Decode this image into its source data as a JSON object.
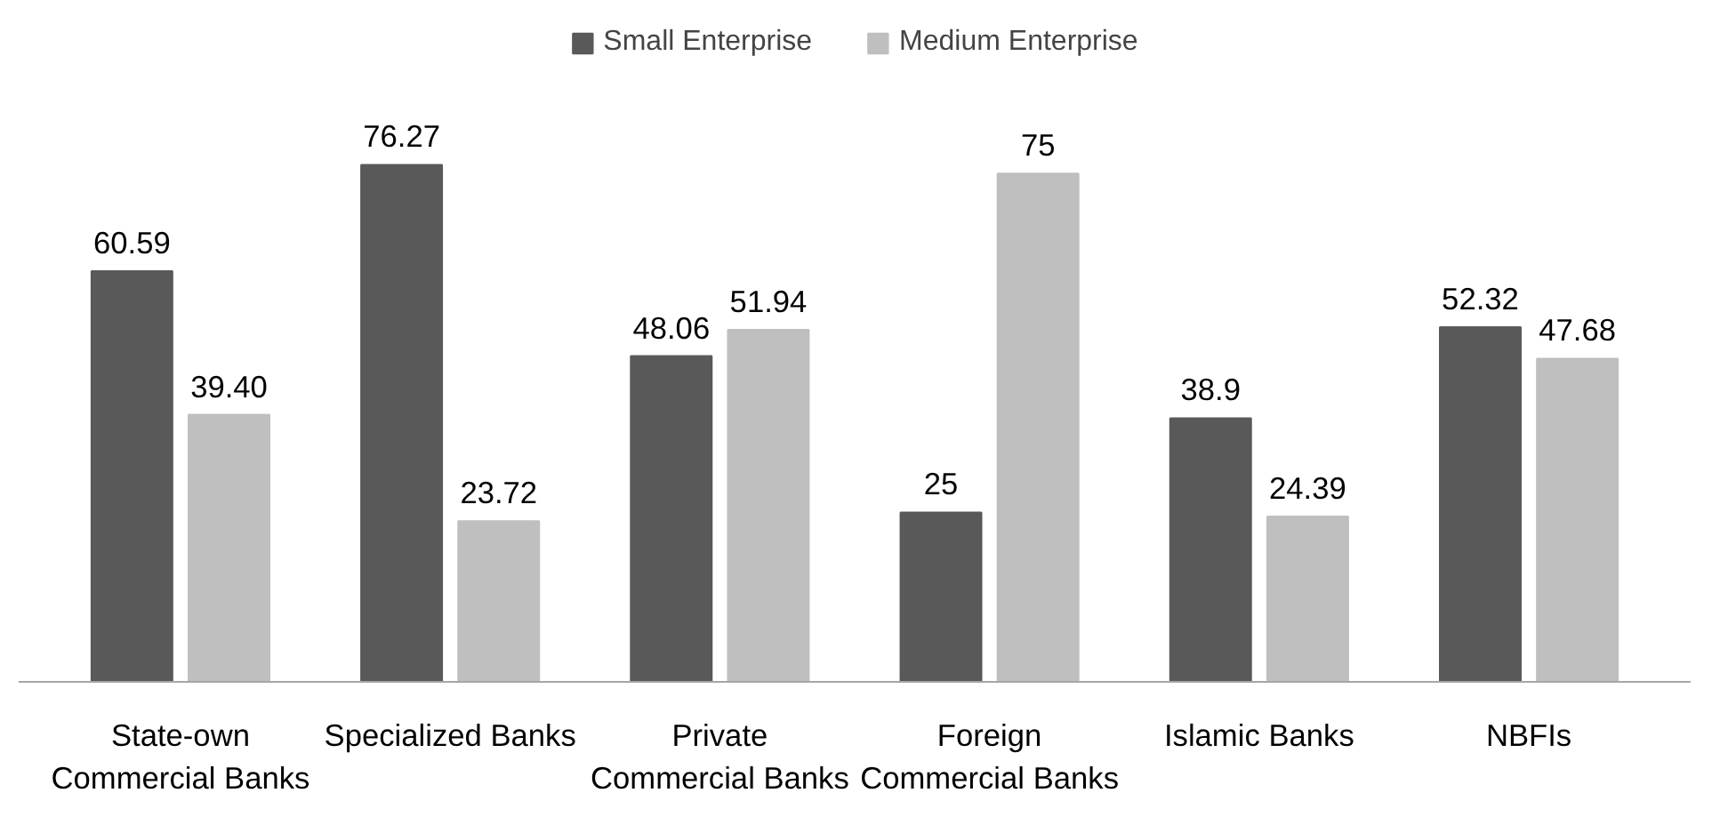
{
  "chart_data": {
    "type": "bar",
    "categories": [
      "State-own Commercial Banks",
      "Specialized Banks",
      "Private Commercial Banks",
      "Foreign Commercial Banks",
      "Islamic Banks",
      "NBFIs"
    ],
    "series": [
      {
        "name": "Small Enterprise",
        "color": "#595959",
        "values": [
          60.59,
          76.27,
          48.06,
          25,
          38.9,
          52.32
        ],
        "value_labels": [
          "60.59",
          "76.27",
          "48.06",
          "25",
          "38.9",
          "52.32"
        ]
      },
      {
        "name": "Medium Enterprise",
        "color": "#bfbfbf",
        "values": [
          39.4,
          23.72,
          51.94,
          75,
          24.39,
          47.68
        ],
        "value_labels": [
          "39.40",
          "23.72",
          "51.94",
          "75",
          "24.39",
          "47.68"
        ]
      }
    ],
    "legend": "top",
    "grid": false
  }
}
